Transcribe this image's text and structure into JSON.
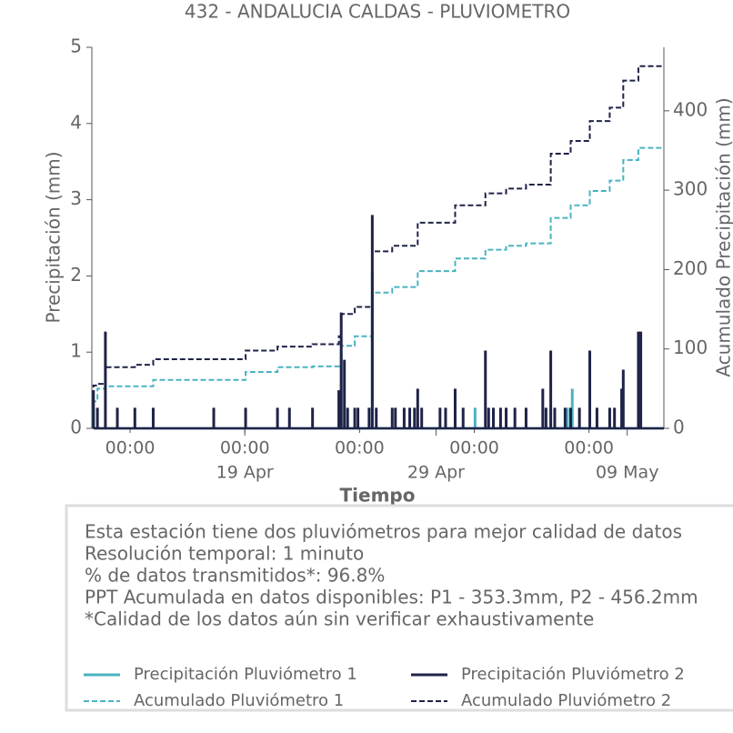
{
  "chart_data": {
    "type": "line",
    "title": "432 - ANDALUCIA CALDAS - PLUVIOMETRO",
    "xlabel": "Tiempo",
    "ylabel": "Precipitación (mm)",
    "y2label": "Acumulado Precipitación (mm)",
    "xlim": [
      "04-11 00:00",
      "05-10 22:00"
    ],
    "xticks": [
      {
        "value": "04-13 00:00",
        "label": "00:00"
      },
      {
        "value": "04-19 00:00",
        "label": "00:00"
      },
      {
        "value": "04-25 00:00",
        "label": "00:00"
      },
      {
        "value": "05-01 00:00",
        "label": "00:00"
      },
      {
        "value": "05-07 00:00",
        "label": "00:00"
      }
    ],
    "xdate_ticks": [
      {
        "value": "04-19 00:00",
        "label": "19 Apr"
      },
      {
        "value": "04-29 00:00",
        "label": "29 Apr"
      },
      {
        "value": "05-09 00:00",
        "label": "09 May"
      }
    ],
    "ylim": [
      0,
      5
    ],
    "yticks": [
      0,
      1,
      2,
      3,
      4,
      5
    ],
    "y2lim": [
      0,
      480
    ],
    "y2ticks": [
      0,
      100,
      200,
      300,
      400
    ],
    "notes": [
      "Esta estación tiene dos pluviómetros para mejor calidad de datos",
      "Resolución temporal: 1 minuto",
      "% de datos transmitidos*: 96.8%",
      "PPT Acumulada en datos disponibles: P1 - 353.3mm, P2 - 456.2mm",
      "*Calidad de los datos aún sin verificar exhaustivamente"
    ],
    "series": [
      {
        "name": "Precipitación Pluviómetro 1",
        "color": "#4bb3c1",
        "kind": "spikes",
        "linestyle": "solid",
        "x": [
          "04-11 02:00",
          "04-24 01:00",
          "04-25 16:00",
          "05-01 01:00",
          "05-05 21:00",
          "05-06 03:00"
        ],
        "values": [
          0.27,
          1.0,
          2.05,
          0.27,
          0.27,
          0.52
        ]
      },
      {
        "name": "Acumulado Pluviómetro 1",
        "color": "#4bb3c1",
        "kind": "steps",
        "linestyle": "dashed",
        "axis": "y2",
        "x": [
          "04-11 02:00",
          "04-11 07:00",
          "04-11 17:00",
          "04-14 05:00",
          "04-19 01:00",
          "04-20 17:00",
          "04-22 13:00",
          "04-24 01:00",
          "04-24 18:00",
          "04-25 16:00",
          "04-26 17:00",
          "04-28 01:00",
          "04-30 00:00",
          "05-01 14:00",
          "05-02 16:00",
          "05-03 17:00",
          "05-05 00:00",
          "05-06 01:00",
          "05-07 01:00",
          "05-08 02:00",
          "05-08 19:00",
          "05-09 14:00",
          "05-10 22:00"
        ],
        "values": [
          34,
          50,
          53,
          61,
          71,
          77,
          78,
          104,
          116,
          171,
          178,
          198,
          214,
          225,
          230,
          233,
          265,
          281,
          299,
          312,
          338,
          353.3,
          353.3
        ]
      },
      {
        "name": "Precipitación Pluviómetro 2",
        "color": "#1f2347",
        "kind": "spikes",
        "linestyle": "solid",
        "x": [
          "04-11 02:00",
          "04-11 07:00",
          "04-11 17:00",
          "04-12 08:00",
          "04-13 06:00",
          "04-14 05:00",
          "04-17 09:00",
          "04-19 01:00",
          "04-20 17:00",
          "04-21 08:00",
          "04-22 13:00",
          "04-23 22:00",
          "04-24 01:00",
          "04-24 05:00",
          "04-24 09:00",
          "04-24 18:00",
          "04-24 22:00",
          "04-25 12:00",
          "04-25 16:00",
          "04-25 21:00",
          "04-26 17:00",
          "04-26 21:00",
          "04-27 08:00",
          "04-27 15:00",
          "04-27 21:00",
          "04-28 01:00",
          "04-28 06:00",
          "04-29 05:00",
          "04-29 12:00",
          "04-30 00:00",
          "04-30 10:00",
          "05-01 14:00",
          "05-01 18:00",
          "05-02 00:00",
          "05-02 09:00",
          "05-02 16:00",
          "05-03 03:00",
          "05-03 17:00",
          "05-04 14:00",
          "05-04 18:00",
          "05-05 00:00",
          "05-05 05:00",
          "05-05 18:00",
          "05-06 01:00",
          "05-06 12:00",
          "05-07 01:00",
          "05-07 10:00",
          "05-08 02:00",
          "05-08 08:00",
          "05-08 17:00",
          "05-08 19:00",
          "05-09 14:00",
          "05-09 17:00"
        ],
        "values": [
          0.5,
          0.27,
          1.27,
          0.27,
          0.27,
          0.27,
          0.27,
          0.27,
          0.27,
          0.27,
          0.27,
          0.5,
          1.52,
          0.9,
          0.27,
          0.27,
          0.27,
          0.27,
          2.8,
          0.27,
          0.27,
          0.27,
          0.27,
          0.27,
          0.27,
          0.52,
          0.27,
          0.27,
          0.27,
          0.52,
          0.27,
          1.02,
          0.27,
          0.27,
          0.27,
          0.27,
          0.27,
          0.27,
          0.52,
          0.27,
          1.02,
          0.27,
          0.27,
          0.27,
          0.27,
          1.02,
          0.27,
          0.27,
          0.27,
          0.52,
          0.77,
          1.27,
          1.27
        ]
      },
      {
        "name": "Acumulado Pluviómetro 2",
        "color": "#1f2347",
        "kind": "steps",
        "linestyle": "dashed",
        "axis": "y2",
        "x": [
          "04-11 02:00",
          "04-11 07:00",
          "04-11 17:00",
          "04-13 06:00",
          "04-14 05:00",
          "04-19 01:00",
          "04-20 17:00",
          "04-22 13:00",
          "04-23 22:00",
          "04-24 01:00",
          "04-24 18:00",
          "04-25 16:00",
          "04-26 17:00",
          "04-28 01:00",
          "04-30 00:00",
          "05-01 14:00",
          "05-02 16:00",
          "05-03 17:00",
          "05-05 00:00",
          "05-06 01:00",
          "05-07 01:00",
          "05-08 02:00",
          "05-08 19:00",
          "05-09 14:00",
          "05-10 22:00"
        ],
        "values": [
          54,
          56,
          77,
          80,
          87,
          98,
          103,
          106,
          116,
          144,
          153,
          223,
          230,
          259,
          281,
          296,
          302,
          307,
          346,
          362,
          387,
          404,
          438,
          456.2,
          456.2
        ]
      }
    ]
  }
}
